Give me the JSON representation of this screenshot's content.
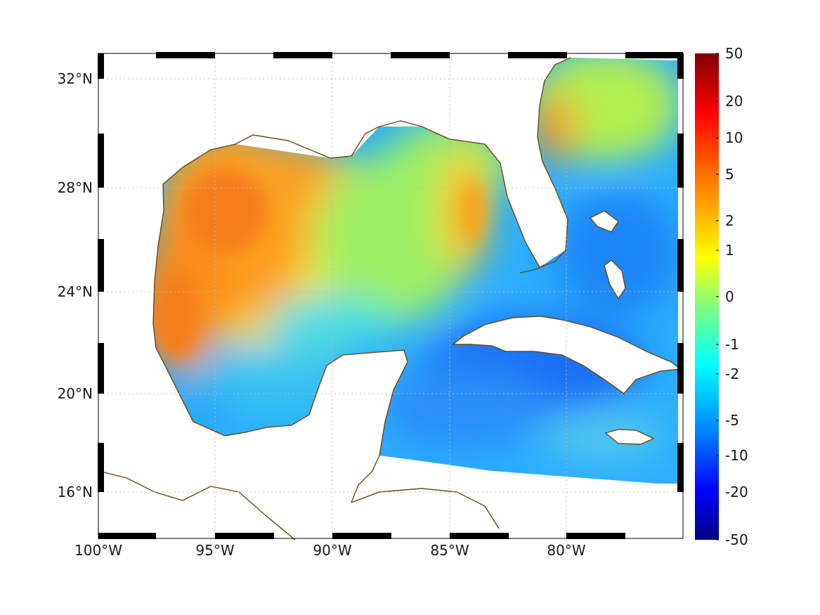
{
  "map": {
    "x_ticks": [
      "100°W",
      "95°W",
      "90°W",
      "85°W",
      "80°W"
    ],
    "y_ticks": [
      "32°N",
      "28°N",
      "24°N",
      "20°N",
      "16°N"
    ],
    "x_tick_values": [
      -100,
      -95,
      -90,
      -85,
      -80
    ],
    "y_tick_values": [
      32,
      28,
      24,
      20,
      16
    ],
    "lon_range": [
      -100,
      -75
    ],
    "lat_range": [
      14.3,
      32.9
    ],
    "grid": true,
    "coastline_color": "#6b4a10",
    "land_color": "#ffffff"
  },
  "colorbar": {
    "ticks": [
      "50",
      "20",
      "10",
      "5",
      "2",
      "1",
      "0",
      "-1",
      "-2",
      "-5",
      "-10",
      "-20",
      "-50"
    ],
    "palette": "jet",
    "placement": "right"
  },
  "chart_data": {
    "type": "heatmap",
    "x_ticks": [
      "100°W",
      "95°W",
      "90°W",
      "85°W",
      "80°W"
    ],
    "y_ticks": [
      "32°N",
      "28°N",
      "24°N",
      "20°N",
      "16°N"
    ],
    "colorbar_ticks": [
      "50",
      "20",
      "10",
      "5",
      "2",
      "1",
      "0",
      "-1",
      "-2",
      "-5",
      "-10",
      "-20",
      "-50"
    ],
    "xlim": [
      -100,
      -75
    ],
    "ylim": [
      14.3,
      32.9
    ],
    "grid": true
  }
}
